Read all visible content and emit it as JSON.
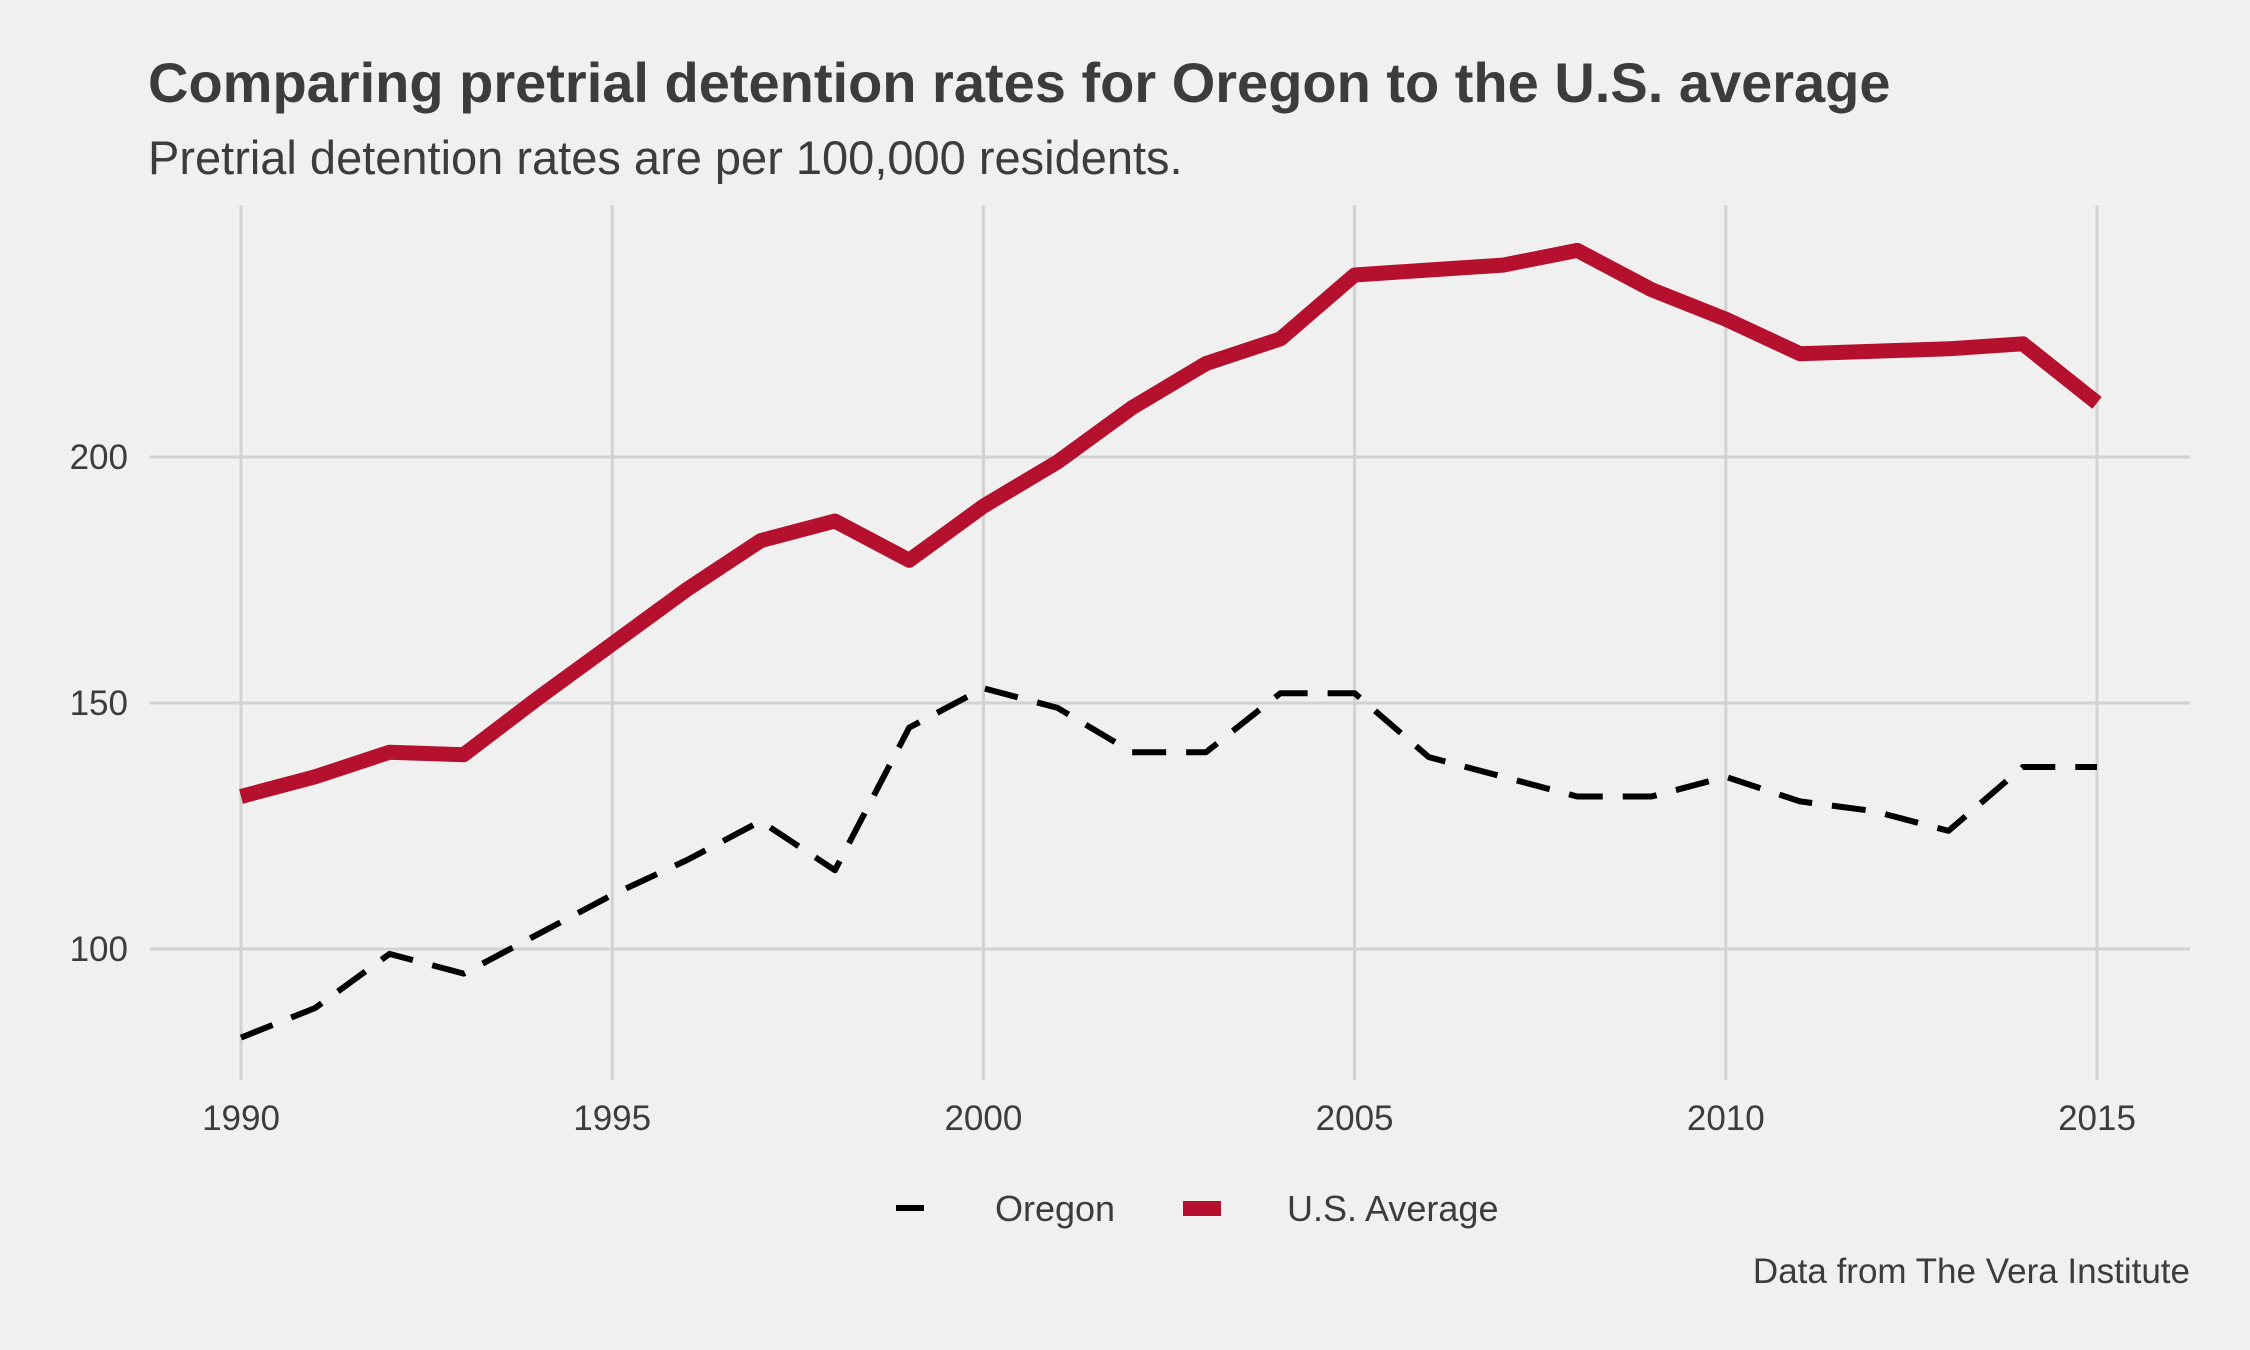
{
  "colors": {
    "background": "#f0f0f0",
    "grid": "#d2d2d2",
    "text": "#3c3c3c",
    "oregon": "#000000",
    "us_average": "#b5102e"
  },
  "chart_data": {
    "type": "line",
    "title": "Comparing pretrial detention rates for Oregon to the U.S. average",
    "subtitle": "Pretrial detention rates are per 100,000 residents.",
    "caption": "Data from The Vera Institute",
    "xlabel": "",
    "ylabel": "",
    "xlim": [
      1990,
      2015
    ],
    "ylim": [
      82,
      244
    ],
    "x_ticks": [
      1990,
      1995,
      2000,
      2005,
      2010,
      2015
    ],
    "x_tick_labels": [
      "1990",
      "1995",
      "2000",
      "2005",
      "2010",
      "2015"
    ],
    "y_ticks": [
      100,
      150,
      200
    ],
    "y_tick_labels": [
      "100",
      "150",
      "200"
    ],
    "grid": true,
    "legend_position": "bottom",
    "x": [
      1990,
      1991,
      1992,
      1993,
      1994,
      1995,
      1996,
      1997,
      1998,
      1999,
      2000,
      2001,
      2002,
      2003,
      2004,
      2005,
      2006,
      2007,
      2008,
      2009,
      2010,
      2011,
      2012,
      2013,
      2014,
      2015
    ],
    "series": [
      {
        "name": "Oregon",
        "style": "dashed",
        "color": "#000000",
        "values": [
          82,
          88,
          99,
          95,
          103,
          111,
          118,
          126,
          116,
          145,
          153,
          149,
          140,
          140,
          152,
          152,
          139,
          135,
          131,
          131,
          135,
          130,
          128,
          124,
          137,
          137
        ]
      },
      {
        "name": "U.S. Average",
        "style": "solid",
        "color": "#b5102e",
        "values": [
          131,
          135,
          140,
          139.5,
          151,
          162,
          173,
          183,
          187,
          179,
          190,
          199,
          210,
          219,
          224,
          237,
          238,
          239,
          242,
          234,
          228,
          221,
          221.5,
          222,
          223,
          211
        ]
      }
    ]
  }
}
